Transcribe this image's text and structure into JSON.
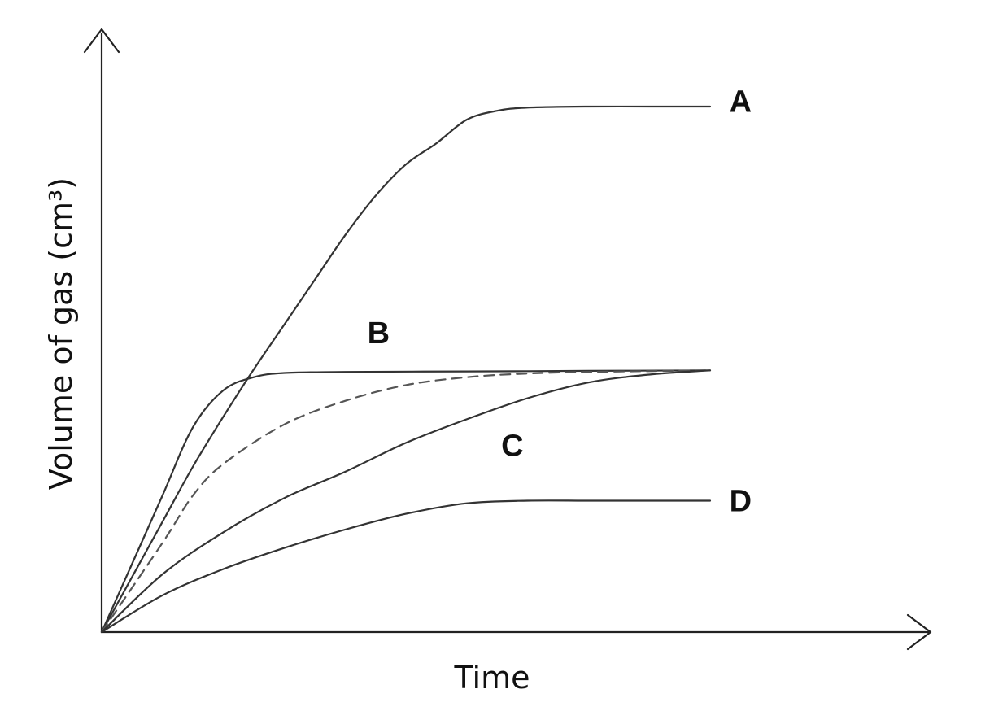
{
  "chart_data": {
    "type": "line",
    "title": "",
    "xlabel": "Time",
    "ylabel": "Volume of gas (cm³)",
    "xlim": [
      0,
      10
    ],
    "ylim": [
      0,
      10
    ],
    "grid": false,
    "axis_ticks": false,
    "colors": {
      "axis": "#222222",
      "line": "#333333",
      "dashed": "#555555",
      "text": "#111111"
    },
    "series": [
      {
        "name": "A",
        "style": "solid",
        "x": [
          0,
          0.5,
          1.0,
          1.5,
          2.0,
          2.5,
          3.0,
          3.5,
          4.0,
          4.5,
          5.0,
          5.5,
          6.0,
          6.5,
          7.0,
          8.0,
          9.0,
          10.0
        ],
        "y": [
          0,
          1.05,
          2.1,
          3.15,
          4.1,
          5.0,
          5.85,
          6.7,
          7.55,
          8.3,
          8.9,
          9.3,
          9.75,
          9.92,
          9.98,
          10.0,
          10.0,
          10.0
        ]
      },
      {
        "name": "B",
        "style": "solid",
        "x": [
          0,
          0.5,
          1.0,
          1.5,
          2.0,
          2.5,
          3.0,
          4.0,
          6.0,
          8.0,
          10.0
        ],
        "y": [
          0,
          1.3,
          2.6,
          3.9,
          4.6,
          4.85,
          4.93,
          4.95,
          4.96,
          4.97,
          4.98
        ]
      },
      {
        "name": "",
        "style": "dashed",
        "x": [
          0,
          1.0,
          1.5,
          2.0,
          3.0,
          4.0,
          5.0,
          6.0,
          7.0,
          8.0,
          10.0
        ],
        "y": [
          0,
          1.7,
          2.6,
          3.2,
          3.95,
          4.4,
          4.7,
          4.85,
          4.92,
          4.95,
          4.98
        ]
      },
      {
        "name": "C",
        "style": "solid",
        "x": [
          0,
          1.0,
          2.0,
          3.0,
          4.0,
          5.0,
          6.0,
          7.0,
          8.0,
          9.0,
          10.0
        ],
        "y": [
          0,
          1.1,
          1.9,
          2.55,
          3.05,
          3.6,
          4.05,
          4.45,
          4.75,
          4.9,
          4.98
        ]
      },
      {
        "name": "D",
        "style": "solid",
        "x": [
          0,
          1.0,
          2.0,
          3.0,
          4.0,
          5.0,
          6.0,
          7.0,
          8.0,
          9.0,
          10.0
        ],
        "y": [
          0,
          0.7,
          1.2,
          1.6,
          1.95,
          2.25,
          2.45,
          2.5,
          2.5,
          2.5,
          2.5
        ]
      }
    ],
    "labels": [
      {
        "text": "A",
        "x": 10.5,
        "y": 10.1
      },
      {
        "text": "B",
        "x": 4.55,
        "y": 5.7
      },
      {
        "text": "C",
        "x": 6.75,
        "y": 3.55
      },
      {
        "text": "D",
        "x": 10.5,
        "y": 2.5
      }
    ]
  }
}
